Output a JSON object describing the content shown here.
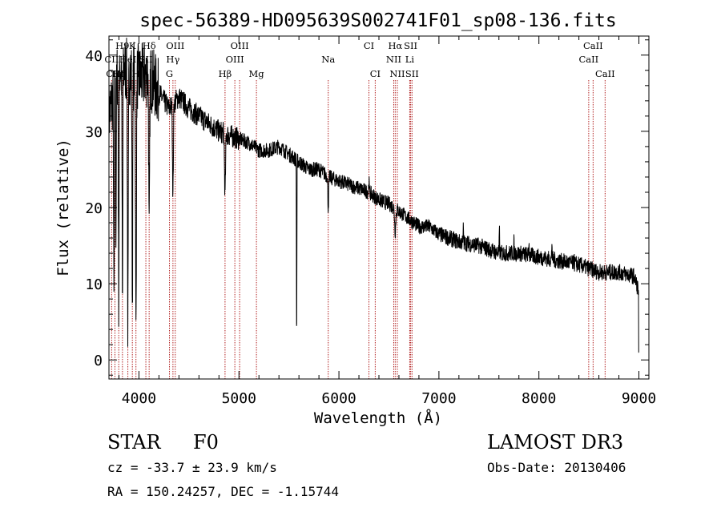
{
  "chart_data": {
    "type": "line",
    "title": "spec-56389-HD095639S002741F01_sp08-136.fits",
    "xlabel": "Wavelength (Å)",
    "ylabel": "Flux (relative)",
    "xlim": [
      3700,
      9100
    ],
    "ylim": [
      -2.5,
      42.5
    ],
    "xticks": [
      4000,
      5000,
      6000,
      7000,
      8000,
      9000
    ],
    "yticks": [
      0,
      10,
      20,
      30,
      40
    ],
    "grid": false,
    "continuum": [
      [
        3700,
        32.0
      ],
      [
        3800,
        38.5
      ],
      [
        3900,
        38.0
      ],
      [
        4000,
        37.0
      ],
      [
        4100,
        37.5
      ],
      [
        4200,
        35.0
      ],
      [
        4300,
        33.0
      ],
      [
        4400,
        34.5
      ],
      [
        4500,
        33.0
      ],
      [
        4600,
        32.0
      ],
      [
        4700,
        31.0
      ],
      [
        4800,
        30.0
      ],
      [
        4900,
        29.5
      ],
      [
        5000,
        29.0
      ],
      [
        5100,
        28.5
      ],
      [
        5200,
        27.5
      ],
      [
        5300,
        27.5
      ],
      [
        5400,
        28.0
      ],
      [
        5500,
        27.0
      ],
      [
        5600,
        26.0
      ],
      [
        5700,
        25.0
      ],
      [
        5800,
        25.0
      ],
      [
        5900,
        24.0
      ],
      [
        6000,
        23.5
      ],
      [
        6100,
        23.0
      ],
      [
        6200,
        22.5
      ],
      [
        6300,
        22.0
      ],
      [
        6400,
        21.0
      ],
      [
        6500,
        20.5
      ],
      [
        6600,
        19.5
      ],
      [
        6700,
        18.5
      ],
      [
        6800,
        17.5
      ],
      [
        6900,
        17.5
      ],
      [
        7000,
        16.5
      ],
      [
        7200,
        15.5
      ],
      [
        7400,
        15.0
      ],
      [
        7600,
        14.0
      ],
      [
        7800,
        14.0
      ],
      [
        8000,
        13.5
      ],
      [
        8200,
        13.0
      ],
      [
        8400,
        12.5
      ],
      [
        8600,
        11.5
      ],
      [
        8800,
        11.5
      ],
      [
        8950,
        11.0
      ],
      [
        9000,
        9.0
      ]
    ],
    "absorption_features": [
      {
        "w": 3750,
        "depth": 28,
        "width": 5
      },
      {
        "w": 3770,
        "depth": 20,
        "width": 4
      },
      {
        "w": 3798,
        "depth": 30,
        "width": 5
      },
      {
        "w": 3835,
        "depth": 32,
        "width": 5
      },
      {
        "w": 3889,
        "depth": 34,
        "width": 6
      },
      {
        "w": 3934,
        "depth": 30,
        "width": 5
      },
      {
        "w": 3970,
        "depth": 34,
        "width": 6
      },
      {
        "w": 4102,
        "depth": 22,
        "width": 6
      },
      {
        "w": 4340,
        "depth": 12,
        "width": 6
      },
      {
        "w": 4861,
        "depth": 8,
        "width": 7
      },
      {
        "w": 5577,
        "depth": 24,
        "width": 3
      },
      {
        "w": 5893,
        "depth": 4,
        "width": 6
      },
      {
        "w": 6563,
        "depth": 3,
        "width": 8
      }
    ],
    "emission_features": [
      {
        "w": 6300,
        "height": 1.5,
        "width": 4
      },
      {
        "w": 7245,
        "height": 2,
        "width": 3
      },
      {
        "w": 7605,
        "height": 3,
        "width": 3
      },
      {
        "w": 7750,
        "height": 1.5,
        "width": 3
      },
      {
        "w": 7900,
        "height": 2,
        "width": 3
      },
      {
        "w": 8130,
        "height": 2.5,
        "width": 3
      },
      {
        "w": 8350,
        "height": 1.5,
        "width": 3
      }
    ],
    "lines": [
      {
        "label": "H9",
        "w": 3835,
        "row": 0
      },
      {
        "label": "K",
        "w": 3934,
        "row": 0
      },
      {
        "label": "Hδ",
        "w": 4102,
        "row": 0
      },
      {
        "label": "OIII",
        "w": 4363,
        "row": 0
      },
      {
        "label": "OIII",
        "w": 5007,
        "row": 0
      },
      {
        "label": "CI",
        "w": 6300,
        "row": 0
      },
      {
        "label": "Hα",
        "w": 6563,
        "row": 0
      },
      {
        "label": "SII",
        "w": 6717,
        "row": 0
      },
      {
        "label": "CaII",
        "w": 8542,
        "row": 0
      },
      {
        "label": "CII",
        "w": 3727,
        "row": 1
      },
      {
        "label": "HeI",
        "w": 3889,
        "row": 1
      },
      {
        "label": "SII",
        "w": 4069,
        "row": 1
      },
      {
        "label": "Hγ",
        "w": 4340,
        "row": 1
      },
      {
        "label": "OIII",
        "w": 4959,
        "row": 1
      },
      {
        "label": "Na",
        "w": 5893,
        "row": 1
      },
      {
        "label": "NII",
        "w": 6548,
        "row": 1
      },
      {
        "label": "Li",
        "w": 6708,
        "row": 1
      },
      {
        "label": "CaII",
        "w": 8498,
        "row": 1
      },
      {
        "label": "CIII",
        "w": 3760,
        "row": 2
      },
      {
        "label": "Hη",
        "w": 3798,
        "row": 2
      },
      {
        "label": "H",
        "w": 3970,
        "row": 2
      },
      {
        "label": "G",
        "w": 4305,
        "row": 2
      },
      {
        "label": "Hβ",
        "w": 4861,
        "row": 2
      },
      {
        "label": "Mg",
        "w": 5175,
        "row": 2
      },
      {
        "label": "CI",
        "w": 6363,
        "row": 2
      },
      {
        "label": "NII",
        "w": 6584,
        "row": 2
      },
      {
        "label": "SII",
        "w": 6731,
        "row": 2
      },
      {
        "label": "CaII",
        "w": 8662,
        "row": 2
      }
    ]
  },
  "info": {
    "class": "STAR",
    "subclass": "F0",
    "survey": "LAMOST DR3",
    "cz": "cz = -33.7 ± 23.9 km/s",
    "obs_date": "Obs-Date: 20130406",
    "radec": "RA = 150.24257, DEC =  -1.15744"
  },
  "colors": {
    "line_marker": "#b22222",
    "spectrum": "#000000",
    "axes": "#000000"
  }
}
